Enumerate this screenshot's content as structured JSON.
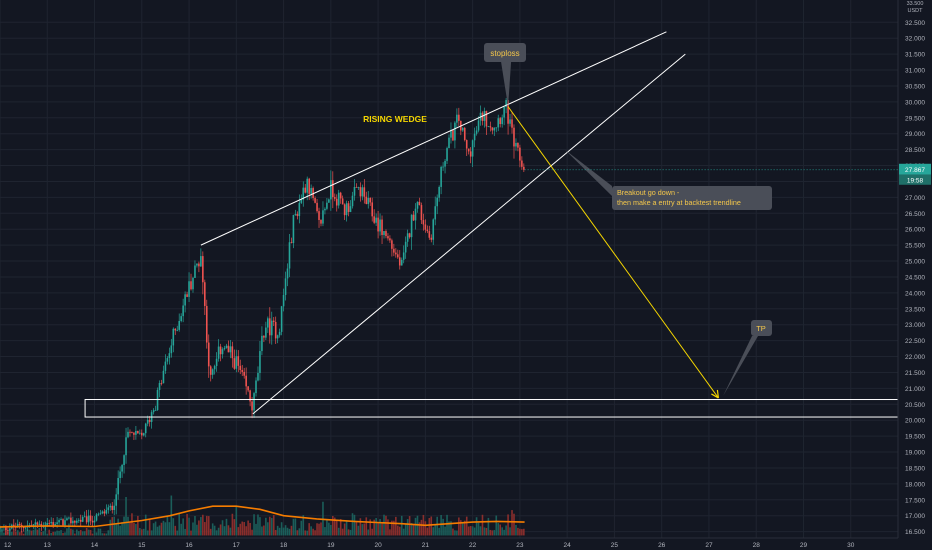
{
  "chart_data": {
    "type": "candlestick",
    "currency": "USDT",
    "y_axis": {
      "ticks": [
        "16.500",
        "17.000",
        "17.500",
        "18.000",
        "18.500",
        "19.000",
        "19.500",
        "20.000",
        "20.500",
        "21.000",
        "21.500",
        "22.000",
        "22.500",
        "23.000",
        "23.500",
        "24.000",
        "24.500",
        "25.000",
        "25.500",
        "26.000",
        "26.500",
        "27.000",
        "27.500",
        "28.000",
        "28.500",
        "29.000",
        "29.500",
        "30.000",
        "30.500",
        "31.000",
        "31.500",
        "32.000",
        "32.500"
      ],
      "top_tick": "33.500",
      "range": [
        16.3,
        33.2
      ],
      "last_price_label": "27.867",
      "countdown_label": "19:58"
    },
    "x_axis": {
      "ticks": [
        "12",
        "13",
        "14",
        "15",
        "16",
        "17",
        "18",
        "19",
        "20",
        "21",
        "22",
        "23",
        "24",
        "25",
        "26",
        "27",
        "28",
        "29",
        "30"
      ],
      "range": [
        12,
        31
      ]
    },
    "colors": {
      "bg": "#131722",
      "grid": "#1f2430",
      "up": "#26a69a",
      "down": "#ef5350",
      "vol_up": "#1b5e5a",
      "vol_down": "#8a2e2c",
      "vol_ma": "#f57c00",
      "trendline": "#ffffff",
      "projection": "#f5d600",
      "title_text": "#f5d600",
      "note_text": "#f5c84b",
      "note_bg": "#4a4e58"
    },
    "pivots": [
      [
        12.0,
        16.6
      ],
      [
        13.0,
        16.75
      ],
      [
        14.0,
        16.9
      ],
      [
        14.4,
        17.3
      ],
      [
        14.7,
        19.6
      ],
      [
        15.0,
        19.5
      ],
      [
        15.3,
        20.6
      ],
      [
        15.7,
        22.8
      ],
      [
        16.0,
        24.2
      ],
      [
        16.25,
        25.2
      ],
      [
        16.45,
        21.2
      ],
      [
        16.7,
        22.4
      ],
      [
        17.0,
        21.8
      ],
      [
        17.35,
        20.4
      ],
      [
        17.6,
        23.0
      ],
      [
        17.9,
        22.8
      ],
      [
        18.2,
        26.2
      ],
      [
        18.5,
        27.6
      ],
      [
        18.75,
        26.1
      ],
      [
        19.0,
        27.3
      ],
      [
        19.3,
        26.6
      ],
      [
        19.6,
        27.3
      ],
      [
        19.9,
        26.4
      ],
      [
        20.25,
        25.6
      ],
      [
        20.5,
        24.8
      ],
      [
        20.8,
        26.9
      ],
      [
        21.1,
        25.7
      ],
      [
        21.4,
        28.3
      ],
      [
        21.7,
        29.5
      ],
      [
        21.9,
        28.3
      ],
      [
        22.2,
        29.6
      ],
      [
        22.45,
        29.25
      ],
      [
        22.7,
        29.85
      ],
      [
        22.9,
        28.5
      ],
      [
        23.1,
        27.87
      ]
    ],
    "volume_ma": [
      [
        12.0,
        16.65
      ],
      [
        13.0,
        16.68
      ],
      [
        14.0,
        16.66
      ],
      [
        15.0,
        16.85
      ],
      [
        15.6,
        17.0
      ],
      [
        16.0,
        17.15
      ],
      [
        16.5,
        17.3
      ],
      [
        17.0,
        17.3
      ],
      [
        17.5,
        17.2
      ],
      [
        18.0,
        17.0
      ],
      [
        18.7,
        16.9
      ],
      [
        19.5,
        16.82
      ],
      [
        20.5,
        16.75
      ],
      [
        21.0,
        16.7
      ],
      [
        21.5,
        16.75
      ],
      [
        22.0,
        16.8
      ],
      [
        22.5,
        16.82
      ],
      [
        23.1,
        16.8
      ]
    ],
    "annotations": {
      "title": "RISING WEDGE",
      "stoploss": "stoploss",
      "breakout_line1": "Breakout go down -",
      "breakout_line2": "then make a entry at backtest trendline",
      "tp": "TP"
    },
    "drawings": {
      "upper_wedge": [
        [
          16.25,
          25.5
        ],
        [
          26.1,
          32.2
        ]
      ],
      "lower_wedge": [
        [
          17.35,
          20.2
        ],
        [
          26.5,
          31.5
        ]
      ],
      "projection": [
        [
          22.75,
          29.85
        ],
        [
          27.2,
          20.7
        ]
      ],
      "support_box": {
        "x_from": 13.8,
        "y_low": 20.1,
        "y_high": 20.65
      },
      "stoploss_point": [
        22.75,
        29.85
      ],
      "tp_point": [
        27.3,
        20.7
      ],
      "breakout_point": [
        23.95,
        28.5
      ]
    }
  }
}
